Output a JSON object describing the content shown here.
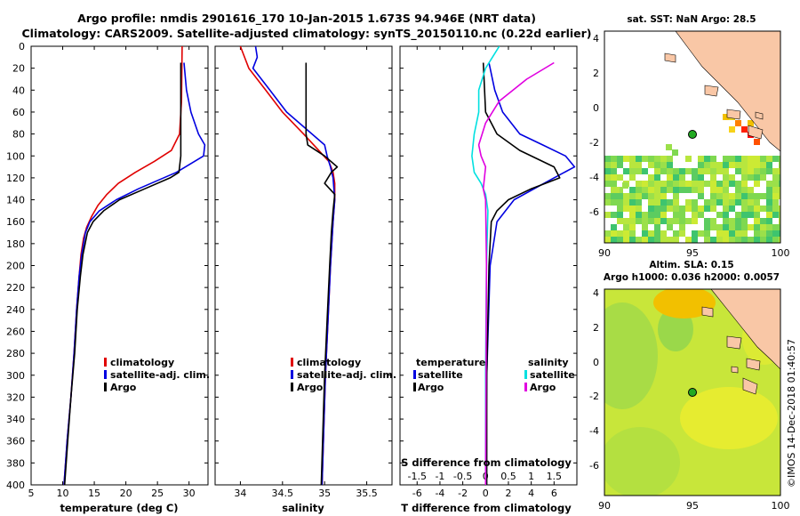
{
  "title": {
    "line1": "Argo profile: nmdis 2901616_170 10-Jan-2015 1.673S 94.946E (NRT data)",
    "line2": "Climatology: CARS2009. Satellite-adjusted climatology: synTS_20150110.nc (0.22d earlier)"
  },
  "colors": {
    "climatology": "#e00000",
    "satellite": "#0000e0",
    "argo": "#000000",
    "sat_t": "#00e0e0",
    "sat_s": "#e000e0"
  },
  "chart_data": [
    {
      "type": "line",
      "id": "temperature",
      "xlabel": "temperature (deg C)",
      "ylabel": "depth",
      "xlim": [
        5,
        33
      ],
      "ylim": [
        400,
        0
      ],
      "xticks": [
        5,
        10,
        15,
        20,
        25,
        30
      ],
      "yticks": [
        0,
        20,
        40,
        60,
        80,
        100,
        120,
        140,
        160,
        180,
        200,
        220,
        240,
        260,
        280,
        300,
        320,
        340,
        360,
        380,
        400
      ],
      "legend": [
        "climatology",
        "satellite-adj. clim.",
        "Argo"
      ],
      "series": [
        {
          "name": "climatology",
          "depth": [
            0,
            50,
            80,
            95,
            105,
            115,
            125,
            135,
            145,
            155,
            165,
            175,
            190,
            210,
            240,
            280,
            320,
            360,
            400
          ],
          "values": [
            28.9,
            28.8,
            28.5,
            27.2,
            24.5,
            21.5,
            18.8,
            17,
            15.6,
            14.6,
            13.8,
            13.3,
            12.9,
            12.6,
            12.2,
            11.8,
            11.3,
            10.7,
            10.2
          ]
        },
        {
          "name": "satellite-adj. clim.",
          "depth": [
            15,
            40,
            60,
            80,
            90,
            100,
            115,
            130,
            140,
            150,
            160,
            170,
            190,
            210,
            240,
            280,
            320,
            360,
            400
          ],
          "values": [
            29.2,
            29.6,
            30.3,
            31.5,
            32.5,
            32.3,
            28,
            22,
            18.5,
            15.8,
            14.3,
            13.6,
            13,
            12.6,
            12.2,
            11.8,
            11.3,
            10.7,
            10.2
          ]
        },
        {
          "name": "Argo",
          "depth": [
            15,
            100,
            115,
            120,
            130,
            140,
            150,
            160,
            170,
            190,
            210,
            240,
            280,
            320,
            360,
            400
          ],
          "values": [
            28.7,
            28.7,
            28.4,
            27,
            23,
            19,
            16.5,
            14.8,
            13.9,
            13.2,
            12.8,
            12.3,
            11.9,
            11.3,
            10.8,
            10.3
          ]
        }
      ]
    },
    {
      "type": "line",
      "id": "salinity",
      "xlabel": "salinity",
      "ylabel": "depth",
      "xlim": [
        33.7,
        35.8
      ],
      "ylim": [
        400,
        0
      ],
      "xticks": [
        34,
        34.5,
        35,
        35.5
      ],
      "xtick_labels": [
        "34",
        "34.5",
        "35",
        "35.5"
      ],
      "legend": [
        "climatology",
        "satellite-adj. clim.",
        "Argo"
      ],
      "series": [
        {
          "name": "climatology",
          "depth": [
            0,
            20,
            40,
            60,
            80,
            95,
            105,
            115,
            125,
            140,
            160,
            200,
            250,
            300,
            350,
            400
          ],
          "values": [
            34,
            34.1,
            34.3,
            34.5,
            34.75,
            34.93,
            35.05,
            35.1,
            35.12,
            35.12,
            35.1,
            35.07,
            35.04,
            35.01,
            34.99,
            34.97
          ]
        },
        {
          "name": "satellite-adj. clim.",
          "depth": [
            0,
            10,
            20,
            40,
            60,
            80,
            90,
            100,
            110,
            120,
            140,
            160,
            200,
            250,
            300,
            350,
            400
          ],
          "values": [
            34.18,
            34.2,
            34.15,
            34.35,
            34.55,
            34.85,
            35,
            35.03,
            35.07,
            35.1,
            35.12,
            35.1,
            35.07,
            35.04,
            35.01,
            34.99,
            34.97
          ]
        },
        {
          "name": "Argo",
          "depth": [
            15,
            80,
            90,
            100,
            110,
            115,
            125,
            135,
            150,
            170,
            200,
            250,
            300,
            350,
            400
          ],
          "values": [
            34.78,
            34.78,
            34.8,
            35,
            35.15,
            35.08,
            35,
            35.12,
            35.1,
            35.08,
            35.06,
            35.03,
            35,
            34.98,
            34.96
          ]
        }
      ]
    },
    {
      "type": "line",
      "id": "differences",
      "xlabel": "T difference from climatology",
      "xlabel_top": "S difference from climatology",
      "ylabel": "depth",
      "xlim": [
        -7.5,
        8
      ],
      "ylim": [
        400,
        0
      ],
      "xticks": [
        -6,
        -4,
        -2,
        0,
        2,
        4,
        6
      ],
      "s_ticks": [
        -1.5,
        -1,
        -0.5,
        0,
        0.5,
        1,
        1.5
      ],
      "s_tick_labels": [
        "-1.5",
        "-1",
        "-0.5",
        "0",
        "0.5",
        "1",
        "1.5"
      ],
      "legend_left": {
        "title": "temperature",
        "items": [
          "satellite",
          "Argo"
        ]
      },
      "legend_right": {
        "title": "salinity",
        "items": [
          "satellite",
          "Argo"
        ]
      },
      "series": [
        {
          "name": "temperature satellite",
          "depth": [
            15,
            40,
            60,
            80,
            90,
            100,
            110,
            120,
            140,
            160,
            200,
            300,
            400
          ],
          "values": [
            0.3,
            0.8,
            1.5,
            3,
            5,
            7,
            7.8,
            6,
            2.5,
            1,
            0.4,
            0.1,
            0
          ]
        },
        {
          "name": "temperature Argo",
          "depth": [
            15,
            60,
            80,
            95,
            110,
            120,
            130,
            140,
            150,
            160,
            200,
            300,
            400
          ],
          "values": [
            -0.2,
            0,
            1,
            3,
            6,
            6.5,
            4,
            2,
            1,
            0.5,
            0.3,
            0.1,
            0.1
          ]
        },
        {
          "name": "salinity satellite",
          "depth": [
            0,
            20,
            40,
            60,
            80,
            100,
            115,
            125,
            135,
            150,
            200,
            300,
            400
          ],
          "values": [
            0.3,
            0,
            -0.15,
            -0.15,
            -0.25,
            -0.3,
            -0.25,
            -0.1,
            0,
            0.05,
            0.02,
            0,
            0
          ]
        },
        {
          "name": "salinity Argo",
          "depth": [
            15,
            30,
            50,
            70,
            90,
            100,
            110,
            130,
            140,
            200,
            300,
            400
          ],
          "values": [
            1.5,
            0.9,
            0.3,
            0,
            -0.15,
            -0.1,
            0,
            -0.05,
            0,
            0.02,
            0.01,
            0
          ]
        }
      ]
    }
  ],
  "maps": {
    "top": {
      "title": "sat. SST: NaN Argo: 28.5",
      "xticks": [
        "90",
        "95",
        "100"
      ],
      "yticks": [
        "4",
        "2",
        "0",
        "-2",
        "-4",
        "-6"
      ],
      "argo_lon": 94.946,
      "argo_lat": -1.673
    },
    "bottom": {
      "title1": "Altim. SLA: 0.15",
      "title2": "Argo h1000: 0.036 h2000: 0.0057",
      "xticks": [
        "90",
        "95",
        "100"
      ],
      "yticks": [
        "4",
        "2",
        "0",
        "-2",
        "-4",
        "-6"
      ],
      "argo_lon": 94.946,
      "argo_lat": -1.673
    }
  },
  "watermark": "©IMOS 14-Dec-2018 01:40:57"
}
